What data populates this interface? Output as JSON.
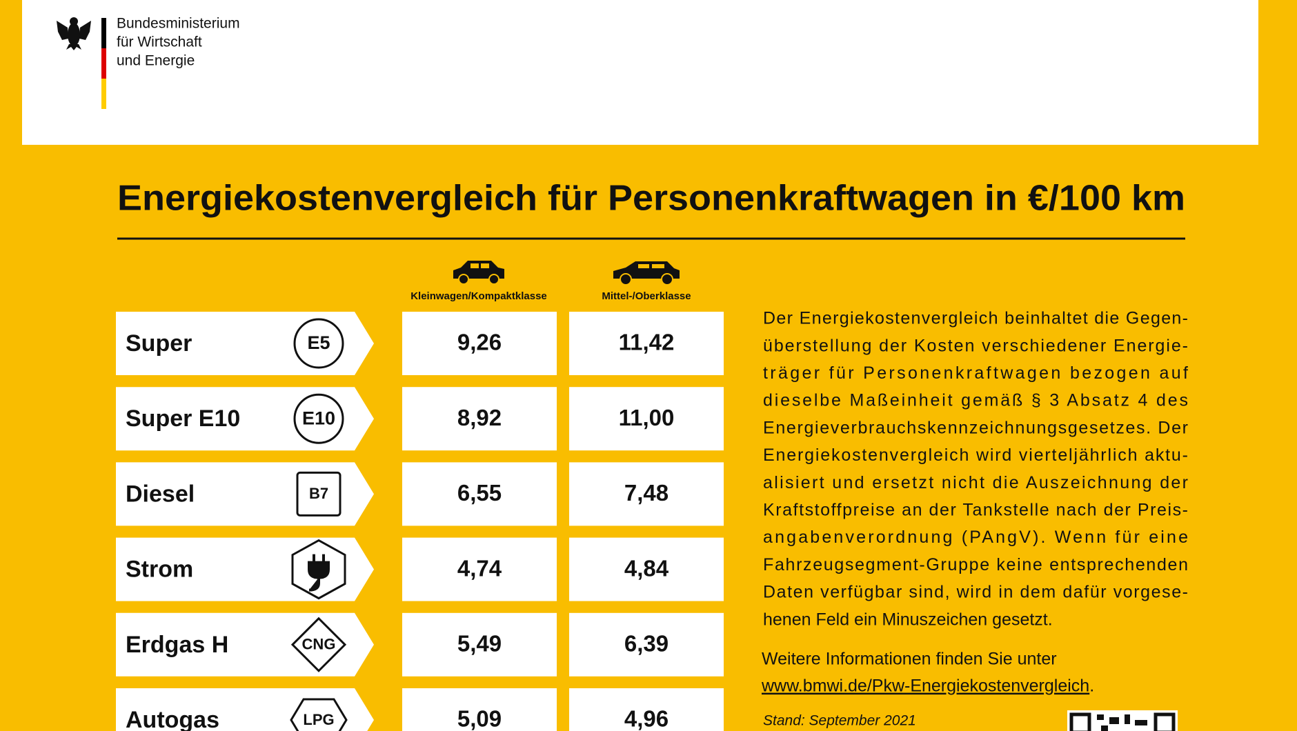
{
  "header": {
    "ministry": [
      "Bundesministerium",
      "für Wirtschaft",
      "und Energie"
    ]
  },
  "title": "Energiekostenvergleich für Personenkraftwagen in €/100 km",
  "columns": [
    "Kleinwagen/Kompaktklasse",
    "Mittel-/Oberklasse"
  ],
  "rows": [
    {
      "fuel": "Super",
      "badge": "E5",
      "values": [
        "9,26",
        "11,42"
      ]
    },
    {
      "fuel": "Super E10",
      "badge": "E10",
      "values": [
        "8,92",
        "11,00"
      ]
    },
    {
      "fuel": "Diesel",
      "badge": "B7",
      "values": [
        "6,55",
        "7,48"
      ]
    },
    {
      "fuel": "Strom",
      "values": [
        "4,74",
        "4,84"
      ]
    },
    {
      "fuel": "Erdgas H",
      "badge": "CNG",
      "values": [
        "5,49",
        "6,39"
      ]
    },
    {
      "fuel": "Autogas",
      "badge": "LPG",
      "values": [
        "5,09",
        "4,96"
      ]
    }
  ],
  "description": [
    "Der Energiekostenvergleich beinhaltet die Gegen-",
    "überstellung der Kosten verschiedener Energie-",
    "träger für Personenkraftwagen bezogen auf",
    "dieselbe Maßeinheit gemäß § 3 Absatz 4 des",
    "Energieverbrauchskennzeichnungsgesetzes. Der",
    "Energiekostenvergleich wird vierteljährlich aktu-",
    "alisiert und ersetzt nicht die Auszeichnung der",
    "Kraftstoffpreise an der Tankstelle nach der Preis-",
    "angabenverordnung (PAngV). Wenn für eine",
    "Fahrzeugsegment-Gruppe keine entsprechenden",
    "Daten verfügbar sind, wird in dem dafür vorgese-",
    "henen Feld ein Minuszeichen gesetzt."
  ],
  "more_info": "Weitere Informationen finden Sie unter",
  "link": "www.bmwi.de/Pkw-Energiekostenvergleich",
  "link_end": ".",
  "stand": "Stand: September 2021"
}
